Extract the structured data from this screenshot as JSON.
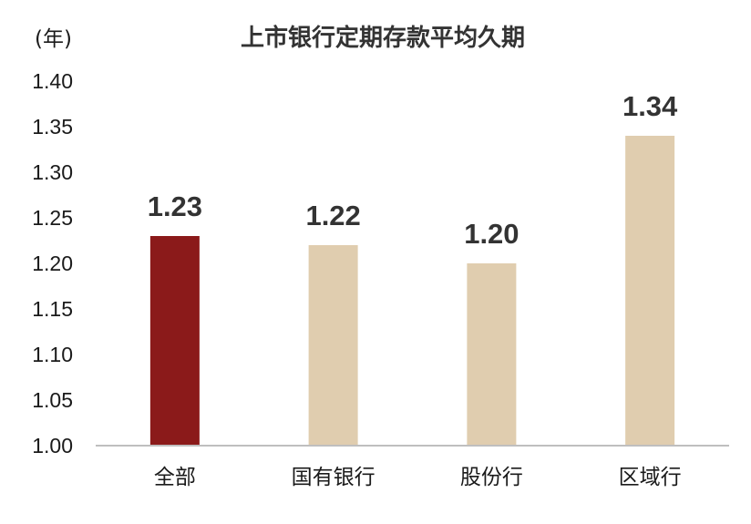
{
  "chart_data": {
    "type": "bar",
    "title": "上市银行定期存款平均久期",
    "unit_label": "(年)",
    "categories": [
      "全部",
      "国有银行",
      "股份行",
      "区域行"
    ],
    "values": [
      1.23,
      1.22,
      1.2,
      1.34
    ],
    "data_labels": [
      "1.23",
      "1.22",
      "1.20",
      "1.34"
    ],
    "ylim": [
      1.0,
      1.4
    ],
    "y_ticks": [
      "1.00",
      "1.05",
      "1.10",
      "1.15",
      "1.20",
      "1.25",
      "1.30",
      "1.35",
      "1.40"
    ],
    "grid": false,
    "legend": "none",
    "colors": {
      "highlight": "#8B1A1A",
      "default": "#E0CDAF",
      "axis": "#BFBFBF",
      "text": "#1a1a1a",
      "label": "#333333"
    },
    "highlight_index": 0
  }
}
